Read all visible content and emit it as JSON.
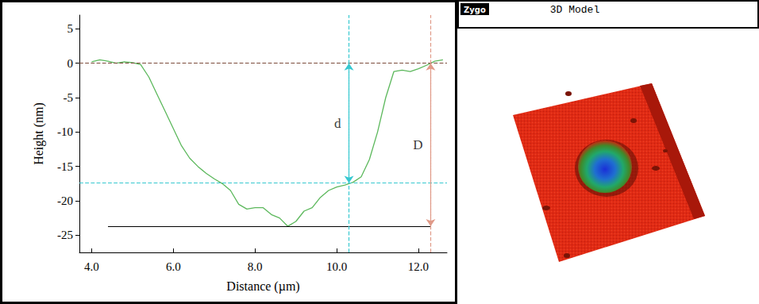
{
  "chart_data": {
    "type": "line",
    "xlabel": "Distance (µm)",
    "ylabel": "Height (nm)",
    "x": [
      4.0,
      4.2,
      4.4,
      4.6,
      4.8,
      5.0,
      5.2,
      5.4,
      5.6,
      5.8,
      6.0,
      6.2,
      6.4,
      6.6,
      6.8,
      7.0,
      7.2,
      7.4,
      7.6,
      7.8,
      8.0,
      8.2,
      8.4,
      8.6,
      8.8,
      9.0,
      9.2,
      9.4,
      9.6,
      9.8,
      10.0,
      10.2,
      10.4,
      10.6,
      10.8,
      11.0,
      11.2,
      11.4,
      11.6,
      11.8,
      12.0,
      12.2,
      12.4,
      12.6
    ],
    "values": [
      0.2,
      0.5,
      0.3,
      0,
      0.2,
      0.1,
      -0.2,
      -2,
      -4.5,
      -7,
      -9.5,
      -12,
      -13.8,
      -15,
      -16,
      -16.8,
      -17.5,
      -18.5,
      -20.5,
      -21.2,
      -21,
      -21,
      -22,
      -22.5,
      -23.7,
      -23,
      -21.5,
      -21,
      -19.5,
      -18.5,
      -18,
      -17.7,
      -17.3,
      -16.5,
      -14,
      -10,
      -5,
      -1.2,
      -1,
      -1.2,
      -0.8,
      -0.3,
      0.3,
      0.5
    ],
    "color": "#5cb85c",
    "line_style": "solid",
    "xlim": [
      3.7,
      12.7
    ],
    "xticks": [
      {
        "value": 4,
        "label": "4.0"
      },
      {
        "value": 6,
        "label": "6.0"
      },
      {
        "value": 8,
        "label": "8.0"
      },
      {
        "value": 10,
        "label": "10.0"
      },
      {
        "value": 12,
        "label": "12.0"
      }
    ],
    "ylim": [
      -27.5,
      7
    ],
    "yticks": [
      5,
      0,
      -5,
      -10,
      -15,
      -20,
      -25
    ],
    "grid": false,
    "reference_lines": [
      {
        "y": 0,
        "color": "#7b4a3a",
        "line_style": "dashed"
      },
      {
        "y": -17.4,
        "color": "#36c8d0",
        "line_style": "dashed"
      },
      {
        "y": -23.7,
        "x": [
          4.4,
          12.3
        ],
        "color": "#000000",
        "line_style": "solid"
      }
    ],
    "annotations": [
      {
        "text": "d",
        "x": 10.3,
        "from": 0,
        "to": -17.4,
        "color": "#36c8d0",
        "line_style": "dashed"
      },
      {
        "text": "D",
        "x": 12.3,
        "from": 0,
        "to": -23.7,
        "color": "#e09a88",
        "line_style": "dashed"
      }
    ]
  },
  "panel": {
    "logo": "Zygo",
    "title": "3D Model"
  }
}
